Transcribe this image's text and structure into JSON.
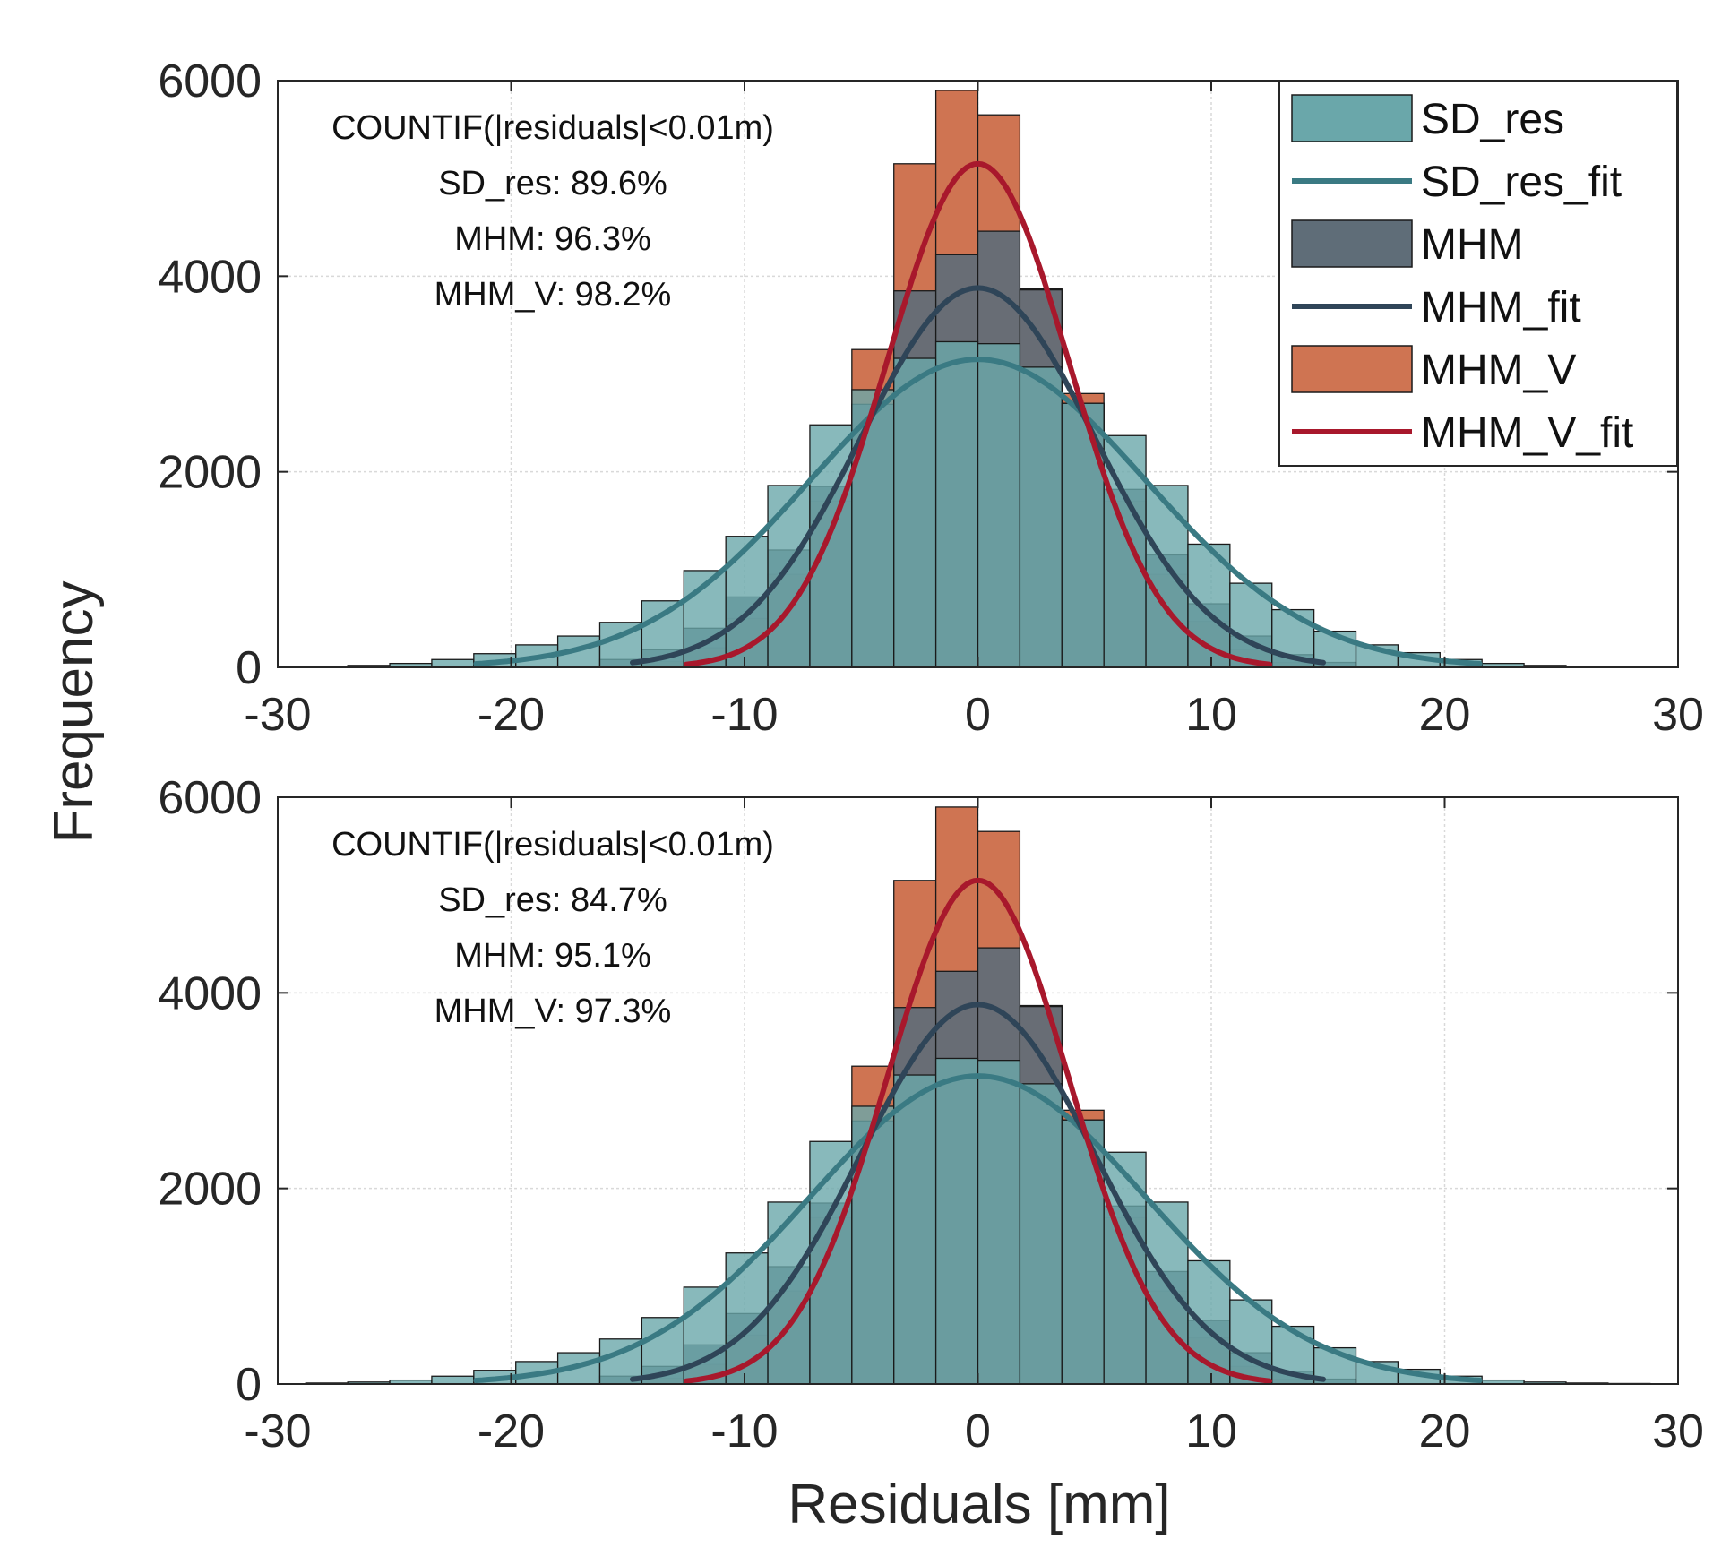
{
  "figure": {
    "ylabel": "Frequency",
    "xlabel": "Residuals [mm]"
  },
  "colors": {
    "sd_res": "#6aa7aa",
    "sd_res_fit": "#3a7a83",
    "mhm": "#5f6d78",
    "mhm_fit": "#2f4558",
    "mhm_v": "#cf7452",
    "mhm_v_fit": "#a8182c",
    "grid": "#d9d9d9",
    "axis": "#262626"
  },
  "legend": [
    {
      "label": "SD_res",
      "kind": "patch",
      "color": "#6aa7aa"
    },
    {
      "label": "SD_res_fit",
      "kind": "line",
      "color": "#3a7a83"
    },
    {
      "label": "MHM",
      "kind": "patch",
      "color": "#5f6d78"
    },
    {
      "label": "MHM_fit",
      "kind": "line",
      "color": "#2f4558"
    },
    {
      "label": "MHM_V",
      "kind": "patch",
      "color": "#cf7452"
    },
    {
      "label": "MHM_V_fit",
      "kind": "line",
      "color": "#a8182c"
    }
  ],
  "chart_data": [
    {
      "type": "bar",
      "title": "",
      "xlabel": "Residuals [mm]",
      "ylabel": "Frequency",
      "xlim": [
        -30,
        30
      ],
      "ylim": [
        0,
        6000
      ],
      "xticks": [
        "-30",
        "-20",
        "-10",
        "0",
        "10",
        "20",
        "30"
      ],
      "yticks": [
        "0",
        "2000",
        "4000",
        "6000"
      ],
      "grid": true,
      "legend_position": "top-right",
      "annotation": [
        "COUNTIF(|residuals|<0.01m)",
        "SD_res: 89.6%",
        "MHM: 96.3%",
        "MHM_V: 98.2%"
      ],
      "bin_width": 1.8,
      "series": [
        {
          "name": "SD_res",
          "kind": "histogram",
          "bin_centers": [
            -27.9,
            -26.1,
            -24.3,
            -22.5,
            -20.7,
            -18.9,
            -17.1,
            -15.3,
            -13.5,
            -11.7,
            -9.9,
            -8.1,
            -6.3,
            -4.5,
            -2.7,
            -0.9,
            0.9,
            2.7,
            4.5,
            6.3,
            8.1,
            9.9,
            11.7,
            13.5,
            15.3,
            17.1,
            18.9,
            20.7,
            22.5,
            24.3,
            26.1,
            27.9
          ],
          "values": [
            10,
            20,
            40,
            80,
            140,
            230,
            320,
            460,
            680,
            990,
            1340,
            1860,
            2480,
            2840,
            3160,
            3330,
            3310,
            3070,
            2700,
            2370,
            1860,
            1260,
            860,
            590,
            370,
            230,
            150,
            80,
            40,
            20,
            10,
            5
          ]
        },
        {
          "name": "SD_res_fit",
          "kind": "gaussian",
          "peak": 3150,
          "mean": 0,
          "sigma": 7.2,
          "range": [
            -21.5,
            21.5
          ]
        },
        {
          "name": "MHM",
          "kind": "histogram",
          "bin_centers": [
            -15.3,
            -13.5,
            -11.7,
            -9.9,
            -8.1,
            -6.3,
            -4.5,
            -2.7,
            -0.9,
            0.9,
            2.7,
            4.5,
            6.3,
            8.1,
            9.9,
            11.7,
            13.5,
            15.3
          ],
          "values": [
            80,
            180,
            400,
            720,
            1200,
            1850,
            2690,
            3850,
            4220,
            4460,
            3860,
            2700,
            1820,
            1150,
            650,
            320,
            130,
            50
          ]
        },
        {
          "name": "MHM_fit",
          "kind": "gaussian",
          "peak": 3880,
          "mean": 0,
          "sigma": 5.0,
          "range": [
            -14.8,
            14.8
          ]
        },
        {
          "name": "MHM_V",
          "kind": "histogram",
          "bin_centers": [
            -13.5,
            -11.7,
            -9.9,
            -8.1,
            -6.3,
            -4.5,
            -2.7,
            -0.9,
            0.9,
            2.7,
            4.5,
            6.3,
            8.1,
            9.9,
            11.7,
            13.5
          ],
          "values": [
            60,
            200,
            500,
            950,
            1700,
            3250,
            5150,
            5900,
            5650,
            3870,
            2800,
            1700,
            950,
            470,
            180,
            50
          ]
        },
        {
          "name": "MHM_V_fit",
          "kind": "gaussian",
          "peak": 5150,
          "mean": 0,
          "sigma": 3.9,
          "range": [
            -12.5,
            12.5
          ]
        }
      ]
    },
    {
      "type": "bar",
      "title": "",
      "xlabel": "Residuals [mm]",
      "ylabel": "Frequency",
      "xlim": [
        -30,
        30
      ],
      "ylim": [
        0,
        6000
      ],
      "xticks": [
        "-30",
        "-20",
        "-10",
        "0",
        "10",
        "20",
        "30"
      ],
      "yticks": [
        "0",
        "2000",
        "4000",
        "6000"
      ],
      "grid": true,
      "legend_position": "none",
      "annotation": [
        "COUNTIF(|residuals|<0.01m)",
        "SD_res: 84.7%",
        "MHM: 95.1%",
        "MHM_V: 97.3%"
      ],
      "bin_width": 1.8,
      "series": [
        {
          "name": "SD_res",
          "kind": "histogram",
          "bin_centers": [
            -27.9,
            -26.1,
            -24.3,
            -22.5,
            -20.7,
            -18.9,
            -17.1,
            -15.3,
            -13.5,
            -11.7,
            -9.9,
            -8.1,
            -6.3,
            -4.5,
            -2.7,
            -0.9,
            0.9,
            2.7,
            4.5,
            6.3,
            8.1,
            9.9,
            11.7,
            13.5,
            15.3,
            17.1,
            18.9,
            20.7,
            22.5,
            24.3,
            26.1,
            27.9
          ],
          "values": [
            10,
            20,
            40,
            80,
            140,
            230,
            320,
            460,
            680,
            990,
            1340,
            1860,
            2480,
            2840,
            3160,
            3330,
            3310,
            3070,
            2700,
            2370,
            1860,
            1260,
            860,
            590,
            370,
            230,
            150,
            80,
            40,
            20,
            10,
            5
          ]
        },
        {
          "name": "SD_res_fit",
          "kind": "gaussian",
          "peak": 3150,
          "mean": 0,
          "sigma": 7.2,
          "range": [
            -21.5,
            21.5
          ]
        },
        {
          "name": "MHM",
          "kind": "histogram",
          "bin_centers": [
            -15.3,
            -13.5,
            -11.7,
            -9.9,
            -8.1,
            -6.3,
            -4.5,
            -2.7,
            -0.9,
            0.9,
            2.7,
            4.5,
            6.3,
            8.1,
            9.9,
            11.7,
            13.5,
            15.3
          ],
          "values": [
            80,
            180,
            400,
            720,
            1200,
            1850,
            2690,
            3850,
            4220,
            4460,
            3860,
            2700,
            1820,
            1150,
            650,
            320,
            130,
            50
          ]
        },
        {
          "name": "MHM_fit",
          "kind": "gaussian",
          "peak": 3880,
          "mean": 0,
          "sigma": 5.0,
          "range": [
            -14.8,
            14.8
          ]
        },
        {
          "name": "MHM_V",
          "kind": "histogram",
          "bin_centers": [
            -13.5,
            -11.7,
            -9.9,
            -8.1,
            -6.3,
            -4.5,
            -2.7,
            -0.9,
            0.9,
            2.7,
            4.5,
            6.3,
            8.1,
            9.9,
            11.7,
            13.5
          ],
          "values": [
            60,
            200,
            500,
            950,
            1700,
            3250,
            5150,
            5900,
            5650,
            3870,
            2800,
            1700,
            950,
            470,
            180,
            50
          ]
        },
        {
          "name": "MHM_V_fit",
          "kind": "gaussian",
          "peak": 5150,
          "mean": 0,
          "sigma": 3.9,
          "range": [
            -12.5,
            12.5
          ]
        }
      ]
    }
  ]
}
